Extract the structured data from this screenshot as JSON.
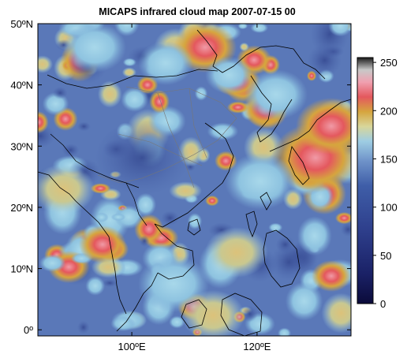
{
  "title": "MICAPS infrared cloud map 2007-07-15 00",
  "map": {
    "lat_ticks": [
      {
        "value": 50,
        "label": "50ºN"
      },
      {
        "value": 40,
        "label": "40ºN"
      },
      {
        "value": 30,
        "label": "30ºN"
      },
      {
        "value": 20,
        "label": "20ºN"
      },
      {
        "value": 10,
        "label": "10ºN"
      },
      {
        "value": 0,
        "label": "0º"
      }
    ],
    "lon_ticks": [
      {
        "value": 100,
        "label": "100ºE"
      },
      {
        "value": 120,
        "label": "120ºE"
      }
    ],
    "lon_range": [
      85,
      135
    ],
    "lat_range": [
      -1,
      50
    ]
  },
  "colorbar": {
    "range": [
      0,
      255
    ],
    "ticks": [
      {
        "value": 0,
        "label": "0"
      },
      {
        "value": 50,
        "label": "50"
      },
      {
        "value": 100,
        "label": "100"
      },
      {
        "value": 150,
        "label": "150"
      },
      {
        "value": 200,
        "label": "200"
      },
      {
        "value": 250,
        "label": "250"
      }
    ]
  }
}
